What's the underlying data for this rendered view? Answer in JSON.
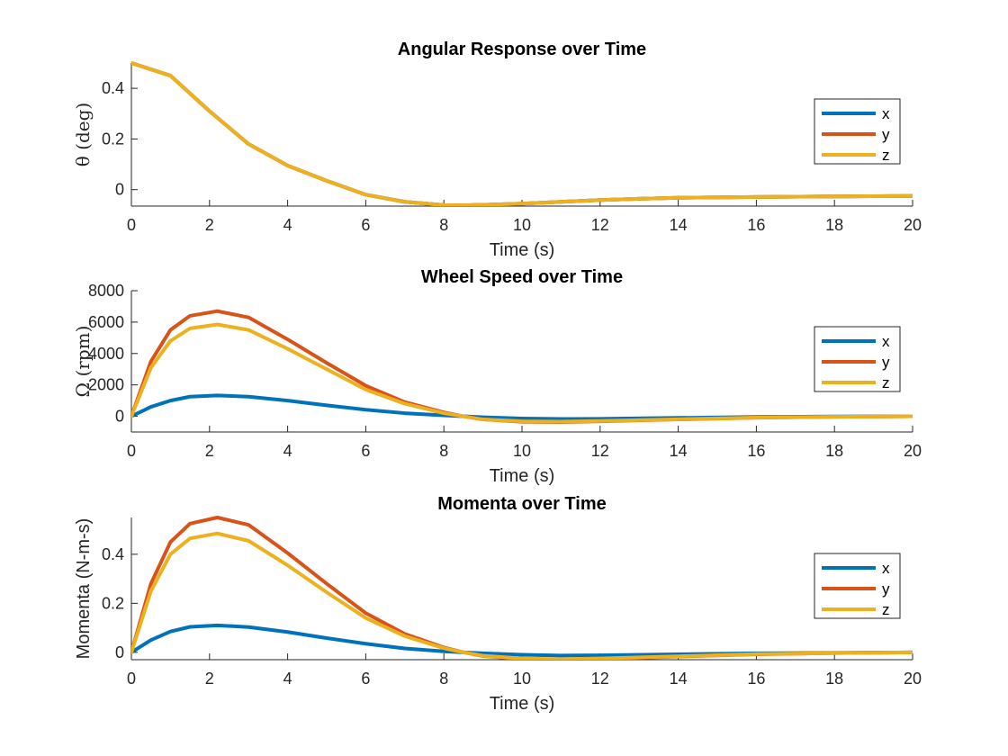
{
  "colors": {
    "x": "#0072BD",
    "y": "#D95319",
    "z": "#EDB120"
  },
  "chart_data": [
    {
      "type": "line",
      "title": "Angular Response over Time",
      "xlabel": "Time (s)",
      "ylabel": "θ (deg)",
      "xlim": [
        0,
        20
      ],
      "ylim": [
        -0.065,
        0.5
      ],
      "xticks": [
        0,
        2,
        4,
        6,
        8,
        10,
        12,
        14,
        16,
        18,
        20
      ],
      "yticks": [
        0,
        0.2,
        0.4
      ],
      "ytick_labels": [
        "0",
        "0.2",
        "0.4"
      ],
      "legend_position": "right",
      "x": [
        0,
        1,
        2,
        3,
        4,
        5,
        6,
        7,
        8,
        8.5,
        9,
        10,
        11,
        12,
        13,
        14,
        16,
        18,
        20
      ],
      "series": [
        {
          "name": "x",
          "values": [
            0.5,
            0.45,
            0.31,
            0.18,
            0.095,
            0.035,
            -0.02,
            -0.048,
            -0.061,
            -0.062,
            -0.06,
            -0.055,
            -0.048,
            -0.041,
            -0.036,
            -0.032,
            -0.029,
            -0.027,
            -0.025
          ]
        },
        {
          "name": "y",
          "values": [
            0.5,
            0.45,
            0.31,
            0.18,
            0.095,
            0.035,
            -0.02,
            -0.048,
            -0.061,
            -0.062,
            -0.06,
            -0.055,
            -0.048,
            -0.041,
            -0.036,
            -0.032,
            -0.029,
            -0.027,
            -0.025
          ]
        },
        {
          "name": "z",
          "values": [
            0.5,
            0.45,
            0.31,
            0.18,
            0.095,
            0.035,
            -0.02,
            -0.048,
            -0.061,
            -0.062,
            -0.06,
            -0.055,
            -0.048,
            -0.041,
            -0.036,
            -0.032,
            -0.029,
            -0.027,
            -0.025
          ]
        }
      ]
    },
    {
      "type": "line",
      "title": "Wheel Speed over Time",
      "xlabel": "Time (s)",
      "ylabel": "Ω (rpm)",
      "xlim": [
        0,
        20
      ],
      "ylim": [
        -1000,
        8000
      ],
      "xticks": [
        0,
        2,
        4,
        6,
        8,
        10,
        12,
        14,
        16,
        18,
        20
      ],
      "yticks": [
        0,
        2000,
        4000,
        6000,
        8000
      ],
      "ytick_labels": [
        "0",
        "2000",
        "4000",
        "6000",
        "8000"
      ],
      "legend_position": "right",
      "x": [
        0,
        0.5,
        1,
        1.5,
        2.2,
        3,
        4,
        5,
        6,
        7,
        8,
        8.5,
        9,
        10,
        11,
        12,
        14,
        16,
        18,
        20
      ],
      "series": [
        {
          "name": "x",
          "values": [
            0,
            600,
            1000,
            1250,
            1330,
            1250,
            1000,
            700,
            420,
            200,
            60,
            0,
            -60,
            -140,
            -170,
            -160,
            -100,
            -40,
            -10,
            0
          ]
        },
        {
          "name": "y",
          "values": [
            0,
            3500,
            5500,
            6400,
            6700,
            6300,
            4900,
            3400,
            1950,
            900,
            250,
            0,
            -200,
            -350,
            -370,
            -320,
            -200,
            -90,
            -30,
            0
          ]
        },
        {
          "name": "z",
          "values": [
            0,
            3100,
            4800,
            5600,
            5850,
            5500,
            4300,
            3000,
            1700,
            800,
            200,
            0,
            -200,
            -320,
            -340,
            -300,
            -190,
            -80,
            -30,
            0
          ]
        }
      ]
    },
    {
      "type": "line",
      "title": "Momenta over Time",
      "xlabel": "Time (s)",
      "ylabel": "Momenta (N-m-s)",
      "xlim": [
        0,
        20
      ],
      "ylim": [
        -0.03,
        0.55
      ],
      "xticks": [
        0,
        2,
        4,
        6,
        8,
        10,
        12,
        14,
        16,
        18,
        20
      ],
      "yticks": [
        0,
        0.2,
        0.4
      ],
      "ytick_labels": [
        "0",
        "0.2",
        "0.4"
      ],
      "legend_position": "right",
      "x": [
        0,
        0.5,
        1,
        1.5,
        2.2,
        3,
        4,
        5,
        6,
        7,
        8,
        8.5,
        9,
        10,
        11,
        12,
        14,
        16,
        18,
        20
      ],
      "series": [
        {
          "name": "x",
          "values": [
            0,
            0.05,
            0.085,
            0.104,
            0.11,
            0.103,
            0.083,
            0.058,
            0.035,
            0.016,
            0.004,
            0,
            -0.004,
            -0.01,
            -0.013,
            -0.012,
            -0.008,
            -0.004,
            -0.002,
            0
          ]
        },
        {
          "name": "y",
          "values": [
            0,
            0.28,
            0.45,
            0.525,
            0.55,
            0.52,
            0.405,
            0.28,
            0.16,
            0.075,
            0.02,
            0,
            -0.015,
            -0.027,
            -0.03,
            -0.027,
            -0.017,
            -0.008,
            -0.003,
            0
          ]
        },
        {
          "name": "z",
          "values": [
            0,
            0.25,
            0.4,
            0.465,
            0.485,
            0.455,
            0.355,
            0.245,
            0.14,
            0.066,
            0.017,
            0,
            -0.014,
            -0.025,
            -0.028,
            -0.025,
            -0.016,
            -0.007,
            -0.003,
            0
          ]
        }
      ]
    }
  ]
}
